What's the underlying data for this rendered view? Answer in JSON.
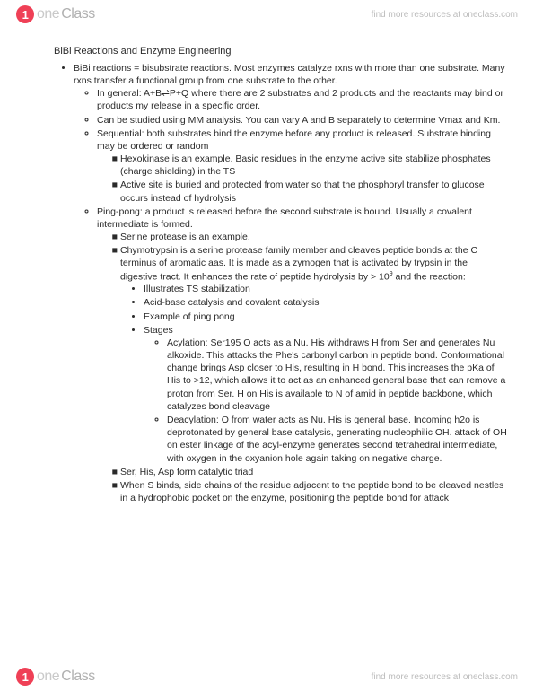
{
  "header": {
    "logo_one": "one",
    "logo_class": "Class",
    "findmore": "find more resources at oneclass.com"
  },
  "footer": {
    "logo_one": "one",
    "logo_class": "Class",
    "findmore": "find more resources at oneclass.com"
  },
  "doc": {
    "title": "BiBi Reactions and Enzyme Engineering",
    "b1": "BiBi reactions = bisubstrate reactions.  Most enzymes catalyze rxns with more than one substrate. Many rxns transfer a functional group from one substrate to the other.",
    "b1a": "In general: A+B⇌P+Q where there are 2 substrates and 2 products and the reactants may bind or products my release in a specific order.",
    "b1b": "Can be studied using MM analysis.  You can vary A and B separately to determine Vmax and Km.",
    "b1c": "Sequential: both substrates bind the enzyme before any product is released.  Substrate binding may be ordered or random",
    "b1c1": "Hexokinase is an example.  Basic residues in the enzyme active site stabilize phosphates (charge shielding) in the TS",
    "b1c2": "Active site is buried and protected from water so that the phosphoryl transfer to glucose occurs instead of hydrolysis",
    "b1d": "Ping-pong: a product is released before the second substrate is bound.  Usually a covalent intermediate is formed.",
    "b1d1": "Serine protease is an example.",
    "b1d2_pre": "Chymotrypsin is a serine protease family member and cleaves peptide bonds at the C terminus of aromatic aas.  It is made as a zymogen that is activated by trypsin in the digestive tract.  It enhances the rate of peptide hydrolysis by > 10",
    "b1d2_sup": "9",
    "b1d2_post": " and the reaction:",
    "b1d2a": "Illustrates TS stabilization",
    "b1d2b": "Acid-base catalysis and covalent catalysis",
    "b1d2c": "Example of ping pong",
    "b1d2d": "Stages",
    "b1d2d1": "Acylation: Ser195 O acts as a Nu. His withdraws H from Ser and generates Nu alkoxide.  This attacks the Phe's carbonyl carbon in peptide bond.  Conformational change brings Asp closer to His, resulting in H bond.  This increases the pKa of His to >12, which allows it to act as an enhanced general base that can remove a proton from Ser.  H on His is available to N of amid in peptide backbone, which catalyzes bond cleavage",
    "b1d2d2": "Deacylation: O from water acts as Nu. His is general base.  Incoming h2o is deprotonated by general base catalysis, generating nucleophilic OH.  attack of OH on ester linkage of the acyl-enzyme generates second tetrahedral intermediate, with oxygen in the oxyanion hole again taking on negative charge.",
    "b1d3": "Ser, His, Asp form catalytic triad",
    "b1d4": "When S binds, side chains of the residue adjacent to the peptide bond to be cleaved nestles in a hydrophobic pocket on the enzyme, positioning the peptide bond for attack"
  }
}
